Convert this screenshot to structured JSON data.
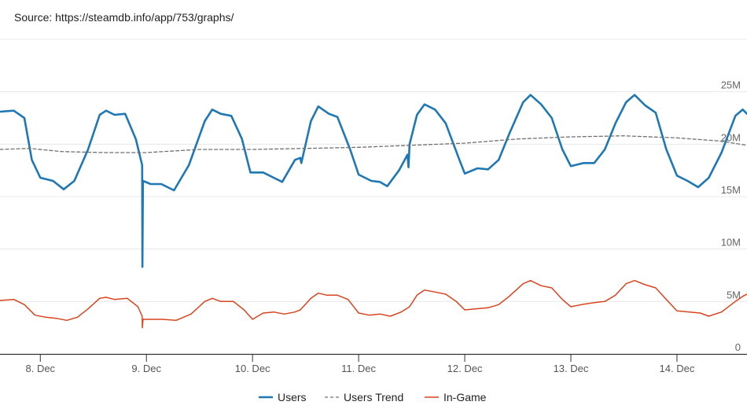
{
  "source": "Source: https://steamdb.info/app/753/graphs/",
  "chart_data": {
    "type": "line",
    "x_unit": "days (December)",
    "xlim": [
      7.62,
      14.66
    ],
    "ylim": [
      0,
      25000000
    ],
    "y_ticks": [
      {
        "value": 0,
        "label": "0"
      },
      {
        "value": 5000000,
        "label": "5M"
      },
      {
        "value": 10000000,
        "label": "10M"
      },
      {
        "value": 15000000,
        "label": "15M"
      },
      {
        "value": 20000000,
        "label": "20M"
      },
      {
        "value": 25000000,
        "label": "25M"
      }
    ],
    "x_ticks": [
      {
        "value": 8,
        "label": "8. Dec"
      },
      {
        "value": 9,
        "label": "9. Dec"
      },
      {
        "value": 10,
        "label": "10. Dec"
      },
      {
        "value": 11,
        "label": "11. Dec"
      },
      {
        "value": 12,
        "label": "12. Dec"
      },
      {
        "value": 13,
        "label": "13. Dec"
      },
      {
        "value": 14,
        "label": "14. Dec"
      }
    ],
    "grid": true,
    "legend": "bottom-center",
    "series": [
      {
        "name": "Users",
        "color": "#1f77b4",
        "style": "solid",
        "points": [
          [
            7.62,
            23.1
          ],
          [
            7.75,
            23.2
          ],
          [
            7.85,
            22.5
          ],
          [
            7.92,
            18.5
          ],
          [
            8.0,
            16.8
          ],
          [
            8.12,
            16.5
          ],
          [
            8.22,
            15.7
          ],
          [
            8.32,
            16.5
          ],
          [
            8.45,
            19.5
          ],
          [
            8.56,
            22.8
          ],
          [
            8.62,
            23.2
          ],
          [
            8.7,
            22.8
          ],
          [
            8.8,
            22.9
          ],
          [
            8.9,
            20.5
          ],
          [
            8.96,
            18.0
          ],
          [
            8.962,
            8.3
          ],
          [
            8.967,
            16.5
          ],
          [
            9.04,
            16.2
          ],
          [
            9.14,
            16.2
          ],
          [
            9.26,
            15.6
          ],
          [
            9.4,
            18.0
          ],
          [
            9.55,
            22.2
          ],
          [
            9.62,
            23.3
          ],
          [
            9.7,
            22.9
          ],
          [
            9.8,
            22.7
          ],
          [
            9.9,
            20.5
          ],
          [
            9.98,
            17.3
          ],
          [
            10.1,
            17.3
          ],
          [
            10.2,
            16.8
          ],
          [
            10.28,
            16.4
          ],
          [
            10.4,
            18.5
          ],
          [
            10.45,
            18.7
          ],
          [
            10.46,
            18.2
          ],
          [
            10.55,
            22.2
          ],
          [
            10.62,
            23.6
          ],
          [
            10.72,
            22.9
          ],
          [
            10.8,
            22.6
          ],
          [
            10.92,
            19.5
          ],
          [
            11.0,
            17.1
          ],
          [
            11.12,
            16.5
          ],
          [
            11.2,
            16.4
          ],
          [
            11.27,
            16.0
          ],
          [
            11.38,
            17.5
          ],
          [
            11.46,
            19.0
          ],
          [
            11.47,
            17.8
          ],
          [
            11.48,
            20.0
          ],
          [
            11.55,
            22.8
          ],
          [
            11.62,
            23.8
          ],
          [
            11.72,
            23.3
          ],
          [
            11.82,
            22.0
          ],
          [
            11.95,
            18.5
          ],
          [
            12.0,
            17.2
          ],
          [
            12.12,
            17.7
          ],
          [
            12.22,
            17.6
          ],
          [
            12.32,
            18.5
          ],
          [
            12.42,
            21.0
          ],
          [
            12.55,
            24.0
          ],
          [
            12.62,
            24.7
          ],
          [
            12.72,
            23.8
          ],
          [
            12.82,
            22.5
          ],
          [
            12.92,
            19.5
          ],
          [
            13.0,
            17.9
          ],
          [
            13.12,
            18.2
          ],
          [
            13.22,
            18.2
          ],
          [
            13.32,
            19.5
          ],
          [
            13.42,
            22.0
          ],
          [
            13.52,
            24.0
          ],
          [
            13.6,
            24.7
          ],
          [
            13.7,
            23.7
          ],
          [
            13.8,
            23.0
          ],
          [
            13.9,
            19.5
          ],
          [
            14.0,
            17.0
          ],
          [
            14.1,
            16.5
          ],
          [
            14.2,
            15.9
          ],
          [
            14.3,
            16.8
          ],
          [
            14.42,
            19.2
          ],
          [
            14.55,
            22.7
          ],
          [
            14.62,
            23.3
          ],
          [
            14.66,
            22.9
          ]
        ]
      },
      {
        "name": "Users Trend",
        "color": "#707070",
        "style": "dashed",
        "points": [
          [
            7.62,
            19.5
          ],
          [
            7.9,
            19.6
          ],
          [
            8.2,
            19.3
          ],
          [
            8.6,
            19.2
          ],
          [
            9.0,
            19.2
          ],
          [
            9.5,
            19.5
          ],
          [
            10.0,
            19.5
          ],
          [
            10.5,
            19.6
          ],
          [
            11.0,
            19.7
          ],
          [
            11.5,
            19.9
          ],
          [
            12.0,
            20.1
          ],
          [
            12.5,
            20.5
          ],
          [
            13.0,
            20.7
          ],
          [
            13.5,
            20.8
          ],
          [
            14.0,
            20.6
          ],
          [
            14.4,
            20.3
          ],
          [
            14.66,
            19.9
          ]
        ]
      },
      {
        "name": "In-Game",
        "color": "#d9441f",
        "style": "solid",
        "points": [
          [
            7.62,
            5.1
          ],
          [
            7.75,
            5.2
          ],
          [
            7.85,
            4.7
          ],
          [
            7.95,
            3.7
          ],
          [
            8.05,
            3.5
          ],
          [
            8.15,
            3.4
          ],
          [
            8.25,
            3.2
          ],
          [
            8.35,
            3.5
          ],
          [
            8.45,
            4.3
          ],
          [
            8.56,
            5.3
          ],
          [
            8.62,
            5.4
          ],
          [
            8.7,
            5.2
          ],
          [
            8.82,
            5.3
          ],
          [
            8.92,
            4.5
          ],
          [
            8.96,
            3.6
          ],
          [
            8.962,
            2.5
          ],
          [
            8.968,
            3.3
          ],
          [
            9.05,
            3.3
          ],
          [
            9.15,
            3.3
          ],
          [
            9.28,
            3.2
          ],
          [
            9.42,
            3.8
          ],
          [
            9.55,
            5.0
          ],
          [
            9.62,
            5.3
          ],
          [
            9.7,
            5.0
          ],
          [
            9.82,
            5.0
          ],
          [
            9.92,
            4.2
          ],
          [
            10.0,
            3.3
          ],
          [
            10.1,
            3.9
          ],
          [
            10.2,
            4.0
          ],
          [
            10.3,
            3.8
          ],
          [
            10.4,
            4.0
          ],
          [
            10.45,
            4.2
          ],
          [
            10.55,
            5.3
          ],
          [
            10.62,
            5.8
          ],
          [
            10.7,
            5.6
          ],
          [
            10.8,
            5.6
          ],
          [
            10.9,
            5.2
          ],
          [
            11.0,
            3.9
          ],
          [
            11.1,
            3.7
          ],
          [
            11.2,
            3.8
          ],
          [
            11.3,
            3.6
          ],
          [
            11.4,
            4.0
          ],
          [
            11.48,
            4.5
          ],
          [
            11.55,
            5.6
          ],
          [
            11.62,
            6.1
          ],
          [
            11.72,
            5.9
          ],
          [
            11.82,
            5.7
          ],
          [
            11.92,
            5.0
          ],
          [
            12.0,
            4.2
          ],
          [
            12.1,
            4.3
          ],
          [
            12.22,
            4.4
          ],
          [
            12.32,
            4.7
          ],
          [
            12.42,
            5.5
          ],
          [
            12.55,
            6.7
          ],
          [
            12.62,
            7.0
          ],
          [
            12.72,
            6.5
          ],
          [
            12.82,
            6.3
          ],
          [
            12.92,
            5.2
          ],
          [
            13.0,
            4.5
          ],
          [
            13.1,
            4.7
          ],
          [
            13.22,
            4.9
          ],
          [
            13.32,
            5.0
          ],
          [
            13.42,
            5.6
          ],
          [
            13.52,
            6.7
          ],
          [
            13.6,
            7.0
          ],
          [
            13.7,
            6.6
          ],
          [
            13.8,
            6.3
          ],
          [
            13.9,
            5.2
          ],
          [
            14.0,
            4.1
          ],
          [
            14.12,
            4.0
          ],
          [
            14.22,
            3.9
          ],
          [
            14.3,
            3.6
          ],
          [
            14.42,
            4.0
          ],
          [
            14.55,
            5.0
          ],
          [
            14.62,
            5.5
          ],
          [
            14.66,
            5.7
          ]
        ]
      }
    ]
  }
}
